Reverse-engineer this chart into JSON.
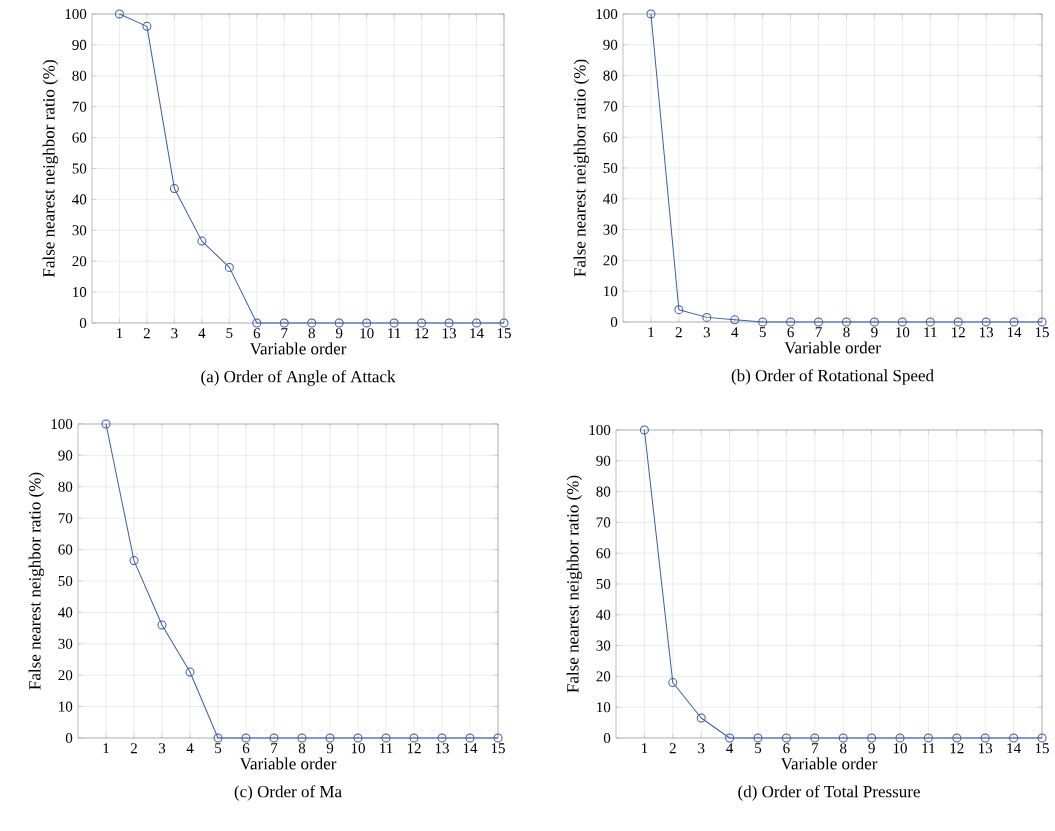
{
  "chart_data": [
    {
      "type": "line",
      "title": "(a) Order of Angle of Attack",
      "xlabel": "Variable order",
      "ylabel": "False nearest neighbor ratio (%)",
      "x": [
        1,
        2,
        3,
        4,
        5,
        6,
        7,
        8,
        9,
        10,
        11,
        12,
        13,
        14,
        15
      ],
      "values": [
        100,
        96,
        43.5,
        26.5,
        18,
        0,
        0,
        0,
        0,
        0,
        0,
        0,
        0,
        0,
        0
      ],
      "color": "#3a5da8",
      "xlim": [
        0,
        15
      ],
      "ylim": [
        0,
        100
      ],
      "xticks": [
        1,
        2,
        3,
        4,
        5,
        6,
        7,
        8,
        9,
        10,
        11,
        12,
        13,
        14,
        15
      ],
      "yticks": [
        0,
        10,
        20,
        30,
        40,
        50,
        60,
        70,
        80,
        90,
        100
      ],
      "grid": true,
      "marker": "circle"
    },
    {
      "type": "line",
      "title": "(b) Order of Rotational Speed",
      "xlabel": "Variable order",
      "ylabel": "False nearest neighbor ratio (%)",
      "x": [
        1,
        2,
        3,
        4,
        5,
        6,
        7,
        8,
        9,
        10,
        11,
        12,
        13,
        14,
        15
      ],
      "values": [
        100,
        4,
        1.5,
        0.7,
        0,
        0,
        0,
        0,
        0,
        0,
        0,
        0,
        0,
        0,
        0
      ],
      "color": "#3a5da8",
      "xlim": [
        0,
        15
      ],
      "ylim": [
        0,
        100
      ],
      "xticks": [
        1,
        2,
        3,
        4,
        5,
        6,
        7,
        8,
        9,
        10,
        11,
        12,
        13,
        14,
        15
      ],
      "yticks": [
        0,
        10,
        20,
        30,
        40,
        50,
        60,
        70,
        80,
        90,
        100
      ],
      "grid": true,
      "marker": "circle"
    },
    {
      "type": "line",
      "title": "(c) Order of Ma",
      "xlabel": "Variable order",
      "ylabel": "False nearest neighbor ratio (%)",
      "x": [
        1,
        2,
        3,
        4,
        5,
        6,
        7,
        8,
        9,
        10,
        11,
        12,
        13,
        14,
        15
      ],
      "values": [
        100,
        56.5,
        36,
        21,
        0,
        0,
        0,
        0,
        0,
        0,
        0,
        0,
        0,
        0,
        0
      ],
      "color": "#3a5da8",
      "xlim": [
        0,
        15
      ],
      "ylim": [
        0,
        100
      ],
      "xticks": [
        1,
        2,
        3,
        4,
        5,
        6,
        7,
        8,
        9,
        10,
        11,
        12,
        13,
        14,
        15
      ],
      "yticks": [
        0,
        10,
        20,
        30,
        40,
        50,
        60,
        70,
        80,
        90,
        100
      ],
      "grid": true,
      "marker": "circle"
    },
    {
      "type": "line",
      "title": "(d) Order of Total Pressure",
      "xlabel": "Variable order",
      "ylabel": "False nearest neighbor ratio (%)",
      "x": [
        1,
        2,
        3,
        4,
        5,
        6,
        7,
        8,
        9,
        10,
        11,
        12,
        13,
        14,
        15
      ],
      "values": [
        100,
        18,
        6.5,
        0,
        0,
        0,
        0,
        0,
        0,
        0,
        0,
        0,
        0,
        0,
        0
      ],
      "color": "#3a5da8",
      "xlim": [
        0,
        15
      ],
      "ylim": [
        0,
        100
      ],
      "xticks": [
        1,
        2,
        3,
        4,
        5,
        6,
        7,
        8,
        9,
        10,
        11,
        12,
        13,
        14,
        15
      ],
      "yticks": [
        0,
        10,
        20,
        30,
        40,
        50,
        60,
        70,
        80,
        90,
        100
      ],
      "grid": true,
      "marker": "circle"
    }
  ]
}
